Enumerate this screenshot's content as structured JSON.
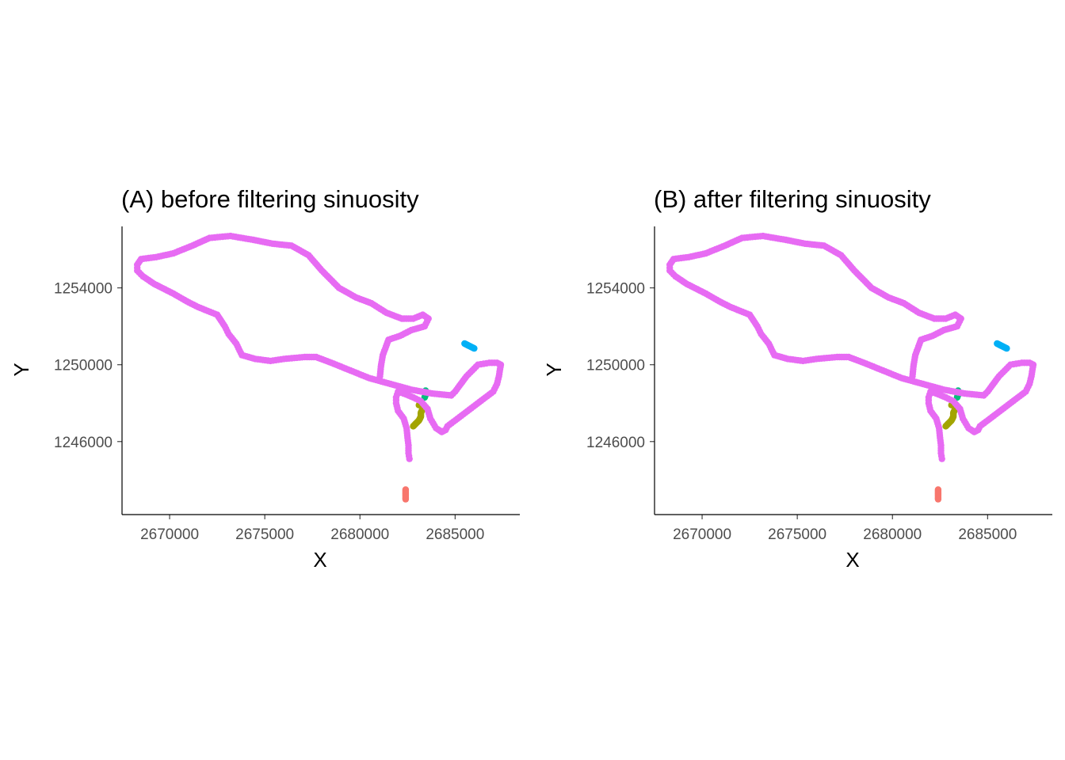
{
  "chart_data": [
    {
      "type": "scatter",
      "title": "(A) before filtering sinuosity",
      "xlabel": "X",
      "ylabel": "Y",
      "xlim": [
        2667500,
        2688400
      ],
      "ylim": [
        1242200,
        1257200
      ],
      "xticks": [
        2670000,
        2675000,
        2680000,
        2685000
      ],
      "xtick_labels": [
        "2670000",
        "2675000",
        "2680000",
        "2685000"
      ],
      "yticks": [
        1246000,
        1250000,
        1254000
      ],
      "ytick_labels": [
        "1246000",
        "1250000",
        "1254000"
      ],
      "grid": false,
      "legend": "none",
      "series": [
        {
          "color": "#f8766d",
          "line": false,
          "x": [
            2682400,
            2682400,
            2682400,
            2682400,
            2682400,
            2682400
          ],
          "y": [
            1243500,
            1243400,
            1243300,
            1243200,
            1243100,
            1243000
          ]
        },
        {
          "color": "#a3a500",
          "line": false,
          "x": [
            2682800,
            2682900,
            2683000,
            2683100,
            2683200,
            2683200,
            2683300,
            2683250,
            2683200,
            2683100
          ],
          "y": [
            1246800,
            1246900,
            1247000,
            1247100,
            1247300,
            1247500,
            1247700,
            1247900,
            1248000,
            1247900
          ]
        },
        {
          "color": "#00bf7d",
          "line": false,
          "x": [
            2683400,
            2683450,
            2683500,
            2683450
          ],
          "y": [
            1248300,
            1248450,
            1248550,
            1248650
          ]
        },
        {
          "color": "#00b0f6",
          "line": false,
          "x": [
            2685500,
            2685700,
            2685900,
            2686000
          ],
          "y": [
            1251100,
            1251000,
            1250900,
            1250850
          ]
        },
        {
          "color": "#e76bf3",
          "line": true,
          "x": [
            2682600,
            2682550,
            2682550,
            2682500,
            2682450,
            2682300,
            2682000,
            2681900,
            2681900,
            2682000,
            2682300,
            2682800,
            2683200,
            2683550,
            2683700,
            2684000,
            2684300,
            2684500,
            2684600,
            2687000,
            2687200,
            2687300,
            2687400,
            2687200,
            2686800,
            2686500,
            2686200,
            2685900,
            2685600,
            2685300,
            2685000,
            2684800,
            2683800,
            2682700,
            2681600,
            2680500,
            2679500,
            2678500,
            2677700,
            2677100,
            2676000,
            2675300,
            2674500,
            2673800,
            2673500,
            2673100,
            2672900,
            2672500,
            2671500,
            2670900,
            2670200,
            2669200,
            2668600,
            2668300,
            2668300,
            2668500,
            2669300,
            2670200,
            2671200,
            2672100,
            2673200,
            2674400,
            2675400,
            2676400,
            2677300,
            2678000,
            2678900,
            2679800,
            2680600,
            2681400,
            2682200,
            2682800,
            2683300,
            2683600,
            2683400,
            2682700,
            2682100,
            2681500,
            2681200,
            2681100,
            2681050
          ],
          "y": [
            1245100,
            1245400,
            1245800,
            1246200,
            1246700,
            1247200,
            1247600,
            1248000,
            1248300,
            1248600,
            1248500,
            1248300,
            1248100,
            1247700,
            1247200,
            1246700,
            1246500,
            1246600,
            1246800,
            1248600,
            1249000,
            1249400,
            1250000,
            1250100,
            1250100,
            1250050,
            1250000,
            1249700,
            1249400,
            1249000,
            1248600,
            1248400,
            1248500,
            1248700,
            1249000,
            1249300,
            1249700,
            1250100,
            1250400,
            1250400,
            1250300,
            1250200,
            1250300,
            1250500,
            1251100,
            1251600,
            1252000,
            1252600,
            1253000,
            1253300,
            1253700,
            1254200,
            1254600,
            1254900,
            1255200,
            1255500,
            1255600,
            1255800,
            1256200,
            1256600,
            1256700,
            1256500,
            1256300,
            1256200,
            1255700,
            1254900,
            1254000,
            1253500,
            1253200,
            1252700,
            1252400,
            1252400,
            1252600,
            1252400,
            1252000,
            1251800,
            1251500,
            1251300,
            1250500,
            1249900,
            1249400
          ]
        }
      ]
    },
    {
      "type": "scatter",
      "title": "(B) after filtering sinuosity",
      "xlabel": "X",
      "ylabel": "Y",
      "xlim": [
        2667500,
        2688400
      ],
      "ylim": [
        1242200,
        1257200
      ],
      "xticks": [
        2670000,
        2675000,
        2680000,
        2685000
      ],
      "xtick_labels": [
        "2670000",
        "2675000",
        "2680000",
        "2685000"
      ],
      "yticks": [
        1246000,
        1250000,
        1254000
      ],
      "ytick_labels": [
        "1246000",
        "1250000",
        "1254000"
      ],
      "grid": false,
      "legend": "none",
      "series": [
        {
          "color": "#f8766d",
          "line": false,
          "x": [
            2682400,
            2682400,
            2682400,
            2682400,
            2682400,
            2682400
          ],
          "y": [
            1243500,
            1243400,
            1243300,
            1243200,
            1243100,
            1243000
          ]
        },
        {
          "color": "#a3a500",
          "line": false,
          "x": [
            2682800,
            2682900,
            2683000,
            2683100,
            2683200,
            2683200,
            2683300,
            2683250,
            2683200,
            2683100
          ],
          "y": [
            1246800,
            1246900,
            1247000,
            1247100,
            1247300,
            1247500,
            1247700,
            1247900,
            1248000,
            1247900
          ]
        },
        {
          "color": "#00bf7d",
          "line": false,
          "x": [
            2683400,
            2683450,
            2683500,
            2683450
          ],
          "y": [
            1248300,
            1248450,
            1248550,
            1248650
          ]
        },
        {
          "color": "#00b0f6",
          "line": false,
          "x": [
            2685500,
            2685700,
            2685900,
            2686000
          ],
          "y": [
            1251100,
            1251000,
            1250900,
            1250850
          ]
        },
        {
          "color": "#e76bf3",
          "line": true,
          "x": [
            2682600,
            2682550,
            2682550,
            2682500,
            2682450,
            2682300,
            2682000,
            2681900,
            2681900,
            2682000,
            2682300,
            2682800,
            2683200,
            2683550,
            2683700,
            2684000,
            2684300,
            2684500,
            2684600,
            2687000,
            2687200,
            2687300,
            2687400,
            2687200,
            2686800,
            2686500,
            2686200,
            2685900,
            2685600,
            2685300,
            2685000,
            2684800,
            2683800,
            2682700,
            2681600,
            2680500,
            2679500,
            2678500,
            2677700,
            2677100,
            2676000,
            2675300,
            2674500,
            2673800,
            2673500,
            2673100,
            2672900,
            2672500,
            2671500,
            2670900,
            2670200,
            2669200,
            2668600,
            2668300,
            2668300,
            2668500,
            2669300,
            2670200,
            2671200,
            2672100,
            2673200,
            2674400,
            2675400,
            2676400,
            2677300,
            2678000,
            2678900,
            2679800,
            2680600,
            2681400,
            2682200,
            2682800,
            2683300,
            2683600,
            2683400,
            2682700,
            2682100,
            2681500,
            2681200,
            2681100,
            2681050
          ],
          "y": [
            1245100,
            1245400,
            1245800,
            1246200,
            1246700,
            1247200,
            1247600,
            1248000,
            1248300,
            1248600,
            1248500,
            1248300,
            1248100,
            1247700,
            1247200,
            1246700,
            1246500,
            1246600,
            1246800,
            1248600,
            1249000,
            1249400,
            1250000,
            1250100,
            1250100,
            1250050,
            1250000,
            1249700,
            1249400,
            1249000,
            1248600,
            1248400,
            1248500,
            1248700,
            1249000,
            1249300,
            1249700,
            1250100,
            1250400,
            1250400,
            1250300,
            1250200,
            1250300,
            1250500,
            1251100,
            1251600,
            1252000,
            1252600,
            1253000,
            1253300,
            1253700,
            1254200,
            1254600,
            1254900,
            1255200,
            1255500,
            1255600,
            1255800,
            1256200,
            1256600,
            1256700,
            1256500,
            1256300,
            1256200,
            1255700,
            1254900,
            1254000,
            1253500,
            1253200,
            1252700,
            1252400,
            1252400,
            1252600,
            1252400,
            1252000,
            1251800,
            1251500,
            1251300,
            1250500,
            1249900,
            1249400
          ]
        }
      ]
    }
  ]
}
